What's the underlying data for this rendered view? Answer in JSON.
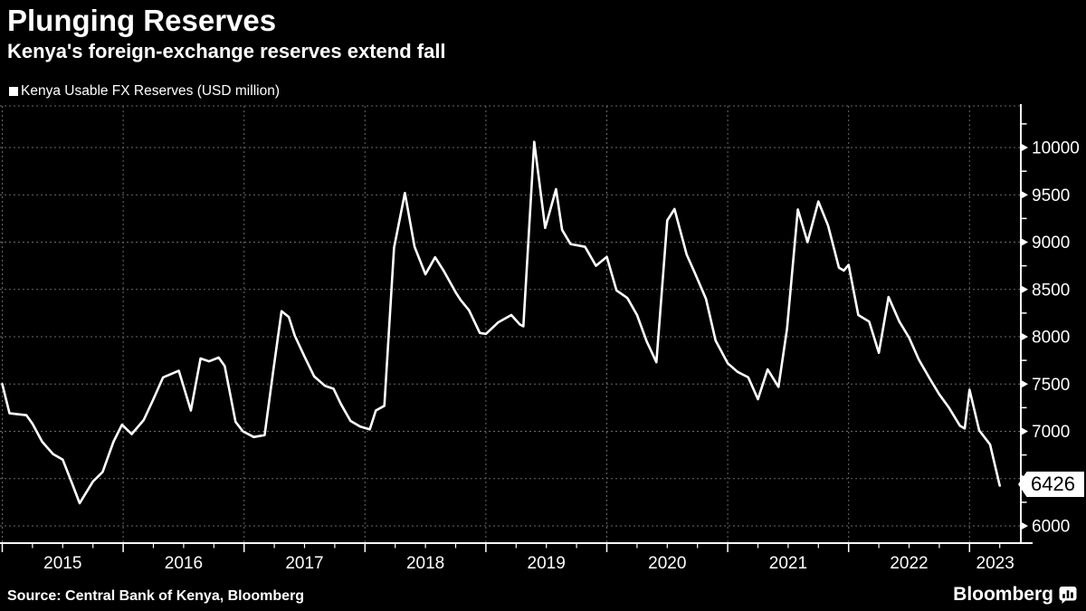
{
  "header": {
    "title": "Plunging Reserves",
    "subtitle": "Kenya's foreign-exchange reserves extend fall"
  },
  "legend": {
    "label": "Kenya Usable FX Reserves (USD million)",
    "marker_color": "#ffffff"
  },
  "chart_data": {
    "type": "line",
    "title": "Plunging Reserves",
    "series_name": "Kenya Usable FX Reserves (USD million)",
    "unit": "USD million",
    "line_color": "#ffffff",
    "background_color": "#000000",
    "grid": "dashed",
    "grid_color": "#6a6a6a",
    "ylim": [
      5790,
      10460
    ],
    "y_ticks": [
      6000,
      6500,
      7000,
      7500,
      8000,
      8500,
      9000,
      9500,
      10000
    ],
    "y_minor_step": 250,
    "x_years": [
      "2015",
      "2016",
      "2017",
      "2018",
      "2019",
      "2020",
      "2021",
      "2022",
      "2023"
    ],
    "x_range": [
      2015.0,
      2023.43
    ],
    "x_minor_tick": "quarterly",
    "last_value_label": "6426",
    "last_point": [
      2023.25,
      6426
    ],
    "points": [
      [
        2015.0,
        7500
      ],
      [
        2015.06,
        7190
      ],
      [
        2015.2,
        7170
      ],
      [
        2015.25,
        7080
      ],
      [
        2015.33,
        6890
      ],
      [
        2015.42,
        6760
      ],
      [
        2015.5,
        6700
      ],
      [
        2015.58,
        6440
      ],
      [
        2015.64,
        6240
      ],
      [
        2015.75,
        6470
      ],
      [
        2015.83,
        6570
      ],
      [
        2015.92,
        6890
      ],
      [
        2015.99,
        7070
      ],
      [
        2016.07,
        6970
      ],
      [
        2016.17,
        7120
      ],
      [
        2016.25,
        7340
      ],
      [
        2016.33,
        7570
      ],
      [
        2016.46,
        7640
      ],
      [
        2016.56,
        7220
      ],
      [
        2016.64,
        7770
      ],
      [
        2016.71,
        7740
      ],
      [
        2016.79,
        7780
      ],
      [
        2016.84,
        7690
      ],
      [
        2016.93,
        7100
      ],
      [
        2016.99,
        7000
      ],
      [
        2017.08,
        6940
      ],
      [
        2017.17,
        6960
      ],
      [
        2017.24,
        7630
      ],
      [
        2017.31,
        8270
      ],
      [
        2017.37,
        8210
      ],
      [
        2017.42,
        8010
      ],
      [
        2017.5,
        7790
      ],
      [
        2017.58,
        7580
      ],
      [
        2017.67,
        7480
      ],
      [
        2017.74,
        7450
      ],
      [
        2017.8,
        7290
      ],
      [
        2017.88,
        7110
      ],
      [
        2017.96,
        7050
      ],
      [
        2018.04,
        7020
      ],
      [
        2018.09,
        7220
      ],
      [
        2018.16,
        7270
      ],
      [
        2018.24,
        8940
      ],
      [
        2018.33,
        9520
      ],
      [
        2018.41,
        8950
      ],
      [
        2018.5,
        8660
      ],
      [
        2018.58,
        8840
      ],
      [
        2018.65,
        8700
      ],
      [
        2018.75,
        8470
      ],
      [
        2018.79,
        8390
      ],
      [
        2018.86,
        8280
      ],
      [
        2018.95,
        8040
      ],
      [
        2019.0,
        8030
      ],
      [
        2019.1,
        8150
      ],
      [
        2019.21,
        8230
      ],
      [
        2019.28,
        8130
      ],
      [
        2019.31,
        8110
      ],
      [
        2019.4,
        10060
      ],
      [
        2019.49,
        9150
      ],
      [
        2019.58,
        9560
      ],
      [
        2019.63,
        9130
      ],
      [
        2019.7,
        8980
      ],
      [
        2019.82,
        8950
      ],
      [
        2019.91,
        8750
      ],
      [
        2020.0,
        8845
      ],
      [
        2020.08,
        8490
      ],
      [
        2020.17,
        8410
      ],
      [
        2020.25,
        8230
      ],
      [
        2020.33,
        7950
      ],
      [
        2020.41,
        7730
      ],
      [
        2020.5,
        9230
      ],
      [
        2020.56,
        9350
      ],
      [
        2020.66,
        8870
      ],
      [
        2020.73,
        8670
      ],
      [
        2020.82,
        8400
      ],
      [
        2020.9,
        7960
      ],
      [
        2021.0,
        7720
      ],
      [
        2021.08,
        7630
      ],
      [
        2021.17,
        7570
      ],
      [
        2021.25,
        7340
      ],
      [
        2021.33,
        7655
      ],
      [
        2021.42,
        7470
      ],
      [
        2021.49,
        8080
      ],
      [
        2021.58,
        9345
      ],
      [
        2021.66,
        9000
      ],
      [
        2021.75,
        9430
      ],
      [
        2021.83,
        9175
      ],
      [
        2021.92,
        8730
      ],
      [
        2021.96,
        8700
      ],
      [
        2022.0,
        8760
      ],
      [
        2022.08,
        8230
      ],
      [
        2022.17,
        8160
      ],
      [
        2022.25,
        7830
      ],
      [
        2022.33,
        8420
      ],
      [
        2022.42,
        8160
      ],
      [
        2022.5,
        7990
      ],
      [
        2022.58,
        7760
      ],
      [
        2022.67,
        7560
      ],
      [
        2022.75,
        7390
      ],
      [
        2022.83,
        7250
      ],
      [
        2022.92,
        7060
      ],
      [
        2022.96,
        7030
      ],
      [
        2023.0,
        7440
      ],
      [
        2023.08,
        7010
      ],
      [
        2023.17,
        6860
      ],
      [
        2023.25,
        6426
      ]
    ]
  },
  "footer": {
    "source": "Source: Central Bank of Kenya, Bloomberg",
    "brand": "Bloomberg"
  }
}
